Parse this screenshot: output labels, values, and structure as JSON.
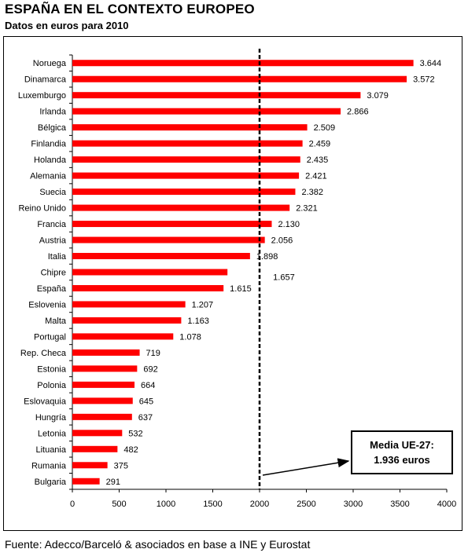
{
  "header": {
    "title": "ESPAÑA EN EL CONTEXTO EUROPEO",
    "subtitle": "Datos en euros para 2010"
  },
  "footer": {
    "source": "Fuente: Adecco/Barceló & asociados en base a INE y Eurostat"
  },
  "annotation": {
    "line1": "Media UE-27:",
    "line2": "1.936 euros"
  },
  "chart_data": {
    "type": "bar",
    "orientation": "horizontal",
    "title": "ESPAÑA EN EL CONTEXTO EUROPEO",
    "subtitle": "Datos en euros para 2010",
    "categories": [
      "Noruega",
      "Dinamarca",
      "Luxemburgo",
      "Irlanda",
      "Bélgica",
      "Finlandia",
      "Holanda",
      "Alemania",
      "Suecia",
      "Reino Unido",
      "Francia",
      "Austria",
      "Italia",
      "Chipre",
      "España",
      "Eslovenia",
      "Malta",
      "Portugal",
      "Rep. Checa",
      "Estonia",
      "Polonia",
      "Eslovaquia",
      "Hungría",
      "Letonia",
      "Lituania",
      "Rumania",
      "Bulgaria"
    ],
    "values": [
      3644,
      3572,
      3079,
      2866,
      2509,
      2459,
      2435,
      2421,
      2382,
      2321,
      2130,
      2056,
      1898,
      1657,
      1615,
      1207,
      1163,
      1078,
      719,
      692,
      664,
      645,
      637,
      532,
      482,
      375,
      291
    ],
    "value_labels": [
      "3.644",
      "3.572",
      "3.079",
      "2.866",
      "2.509",
      "2.459",
      "2.435",
      "2.421",
      "2.382",
      "2.321",
      "2.130",
      "2.056",
      "1.898",
      "1.657",
      "1.615",
      "1.207",
      "1.163",
      "1.078",
      "719",
      "692",
      "664",
      "645",
      "637",
      "532",
      "482",
      "375",
      "291"
    ],
    "xlim": [
      0,
      4000
    ],
    "xticks": [
      0,
      500,
      1000,
      1500,
      2000,
      2500,
      3000,
      3500,
      4000
    ],
    "reference_line": 2000,
    "bar_color": "#ff0000",
    "grid": false,
    "legend": "none"
  }
}
